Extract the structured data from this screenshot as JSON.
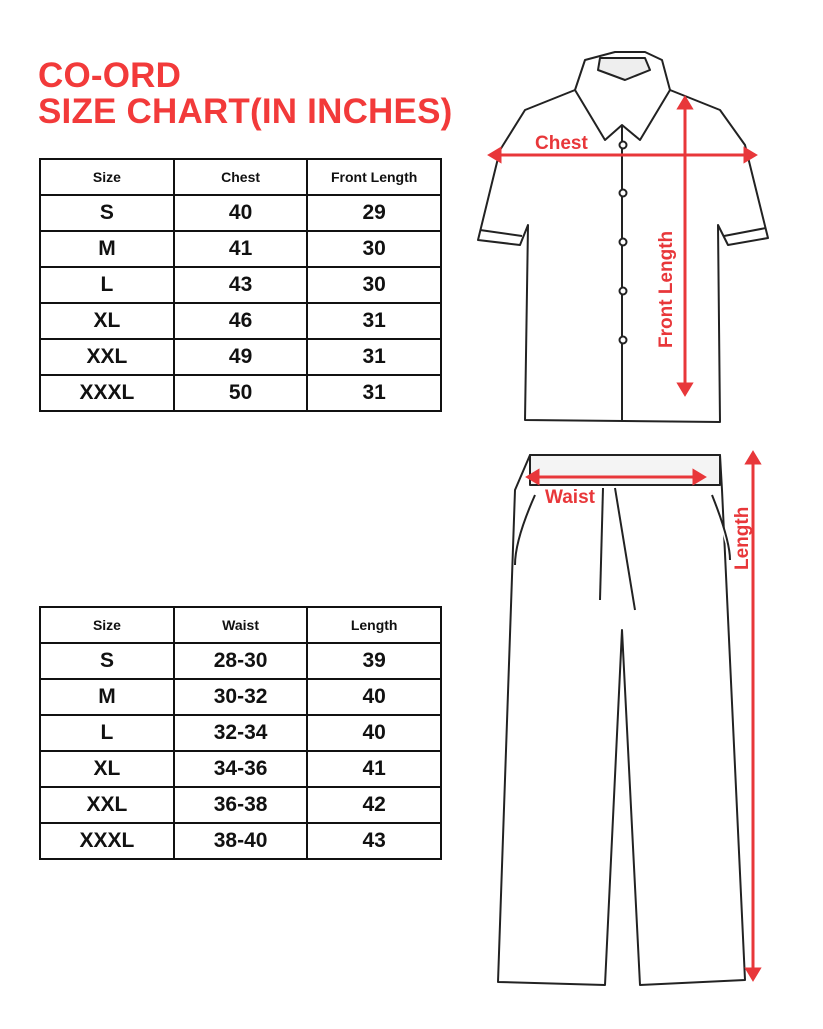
{
  "title_line1": "CO-ORD",
  "title_line2": "SIZE CHART(IN INCHES)",
  "accent_color": "#f23a3a",
  "top_table": {
    "headers": [
      "Size",
      "Chest",
      "Front Length"
    ],
    "rows": [
      [
        "S",
        "40",
        "29"
      ],
      [
        "M",
        "41",
        "30"
      ],
      [
        "L",
        "43",
        "30"
      ],
      [
        "XL",
        "46",
        "31"
      ],
      [
        "XXL",
        "49",
        "31"
      ],
      [
        "XXXL",
        "50",
        "31"
      ]
    ]
  },
  "bottom_table": {
    "headers": [
      "Size",
      "Waist",
      "Length"
    ],
    "rows": [
      [
        "S",
        "28-30",
        "39"
      ],
      [
        "M",
        "30-32",
        "40"
      ],
      [
        "L",
        "32-34",
        "40"
      ],
      [
        "XL",
        "34-36",
        "41"
      ],
      [
        "XXL",
        "36-38",
        "42"
      ],
      [
        "XXXL",
        "38-40",
        "43"
      ]
    ]
  },
  "shirt_labels": {
    "chest": "Chest",
    "front_length": "Front Length"
  },
  "pants_labels": {
    "waist": "Waist",
    "length": "Length"
  }
}
